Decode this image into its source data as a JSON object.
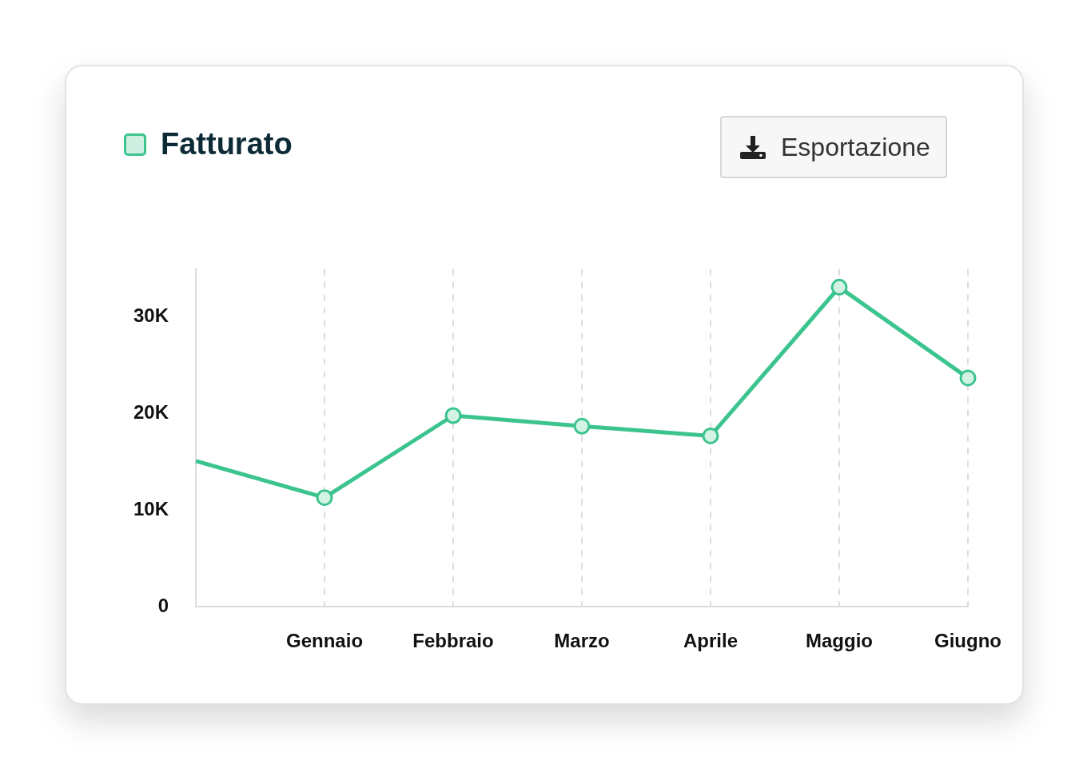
{
  "chart_data": {
    "type": "line",
    "categories": [
      null,
      "Gennaio",
      "Febbraio",
      "Marzo",
      "Aprile",
      "Maggio",
      "Giugno"
    ],
    "series": [
      {
        "name": "Fatturato",
        "color": "#3cc48f",
        "values": [
          15100,
          11300,
          19800,
          18700,
          17700,
          33100,
          23700
        ]
      }
    ],
    "ylim": [
      0,
      35000
    ],
    "yticks": [
      {
        "value": 0,
        "label": "0"
      },
      {
        "value": 10000,
        "label": "10K"
      },
      {
        "value": 20000,
        "label": "20K"
      },
      {
        "value": 30000,
        "label": "30K"
      }
    ],
    "grid": "x",
    "legend": "top left",
    "marker": "circle",
    "line_style": "solid",
    "annotations": [
      "Esportazione"
    ]
  }
}
